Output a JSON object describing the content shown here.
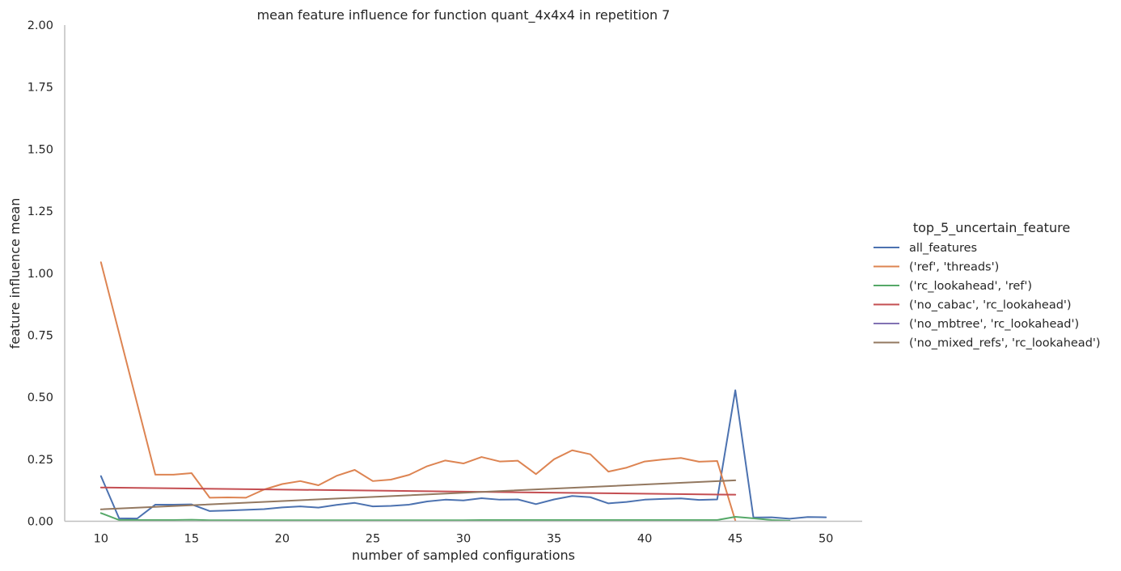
{
  "chart_data": {
    "type": "line",
    "title": "mean feature influence for function quant_4x4x4 in repetition 7",
    "xlabel": "number of sampled configurations",
    "ylabel": "feature influence mean",
    "xlim": [
      8,
      52
    ],
    "ylim": [
      0,
      2
    ],
    "xticks": [
      10,
      15,
      20,
      25,
      30,
      35,
      40,
      45,
      50
    ],
    "yticks": [
      0,
      0.25,
      0.5,
      0.75,
      1,
      1.25,
      1.5,
      1.75,
      2
    ],
    "ytick_labels": [
      "0.00",
      "0.25",
      "0.50",
      "0.75",
      "1.00",
      "1.25",
      "1.50",
      "1.75",
      "2.00"
    ],
    "grid": false,
    "legend": {
      "title": "top_5_uncertain_feature",
      "placement": "right"
    },
    "series": [
      {
        "name": "all_features",
        "color": "#4c72b0",
        "x": [
          10,
          11,
          12,
          13,
          14,
          15,
          16,
          17,
          18,
          19,
          20,
          21,
          22,
          23,
          24,
          25,
          26,
          27,
          28,
          29,
          30,
          31,
          32,
          33,
          34,
          35,
          36,
          37,
          38,
          39,
          40,
          41,
          42,
          43,
          44,
          45,
          46,
          47,
          48,
          49,
          50
        ],
        "y": [
          0.182,
          0.012,
          0.011,
          0.067,
          0.067,
          0.068,
          0.041,
          0.043,
          0.046,
          0.049,
          0.056,
          0.06,
          0.055,
          0.066,
          0.074,
          0.06,
          0.062,
          0.067,
          0.08,
          0.087,
          0.084,
          0.093,
          0.087,
          0.088,
          0.069,
          0.088,
          0.102,
          0.097,
          0.072,
          0.078,
          0.087,
          0.09,
          0.092,
          0.086,
          0.088,
          0.528,
          0.015,
          0.016,
          0.01,
          0.017,
          0.016
        ]
      },
      {
        "name": "('ref', 'threads')",
        "color": "#dd8452",
        "x": [
          10,
          13,
          14,
          15,
          16,
          17,
          18,
          19,
          20,
          21,
          22,
          23,
          24,
          25,
          26,
          27,
          28,
          29,
          30,
          31,
          32,
          33,
          34,
          35,
          36,
          37,
          38,
          39,
          40,
          41,
          42,
          43,
          44,
          45
        ],
        "y": [
          1.044,
          0.188,
          0.188,
          0.194,
          0.095,
          0.096,
          0.095,
          0.128,
          0.15,
          0.162,
          0.145,
          0.183,
          0.207,
          0.162,
          0.168,
          0.187,
          0.222,
          0.245,
          0.233,
          0.259,
          0.241,
          0.244,
          0.19,
          0.25,
          0.286,
          0.27,
          0.2,
          0.216,
          0.241,
          0.249,
          0.255,
          0.24,
          0.243,
          0.003
        ]
      },
      {
        "name": "('rc_lookahead', 'ref')",
        "color": "#55a868",
        "x": [
          10,
          11,
          12,
          13,
          14,
          15,
          16,
          17,
          18,
          19,
          20,
          21,
          22,
          23,
          24,
          25,
          26,
          27,
          28,
          29,
          30,
          31,
          32,
          33,
          34,
          35,
          36,
          37,
          38,
          39,
          40,
          41,
          42,
          43,
          44,
          45,
          46,
          47,
          48
        ],
        "y": [
          0.033,
          0.005,
          0.005,
          0.005,
          0.005,
          0.006,
          0.004,
          0.004,
          0.004,
          0.004,
          0.004,
          0.004,
          0.004,
          0.004,
          0.004,
          0.004,
          0.004,
          0.004,
          0.004,
          0.004,
          0.004,
          0.005,
          0.005,
          0.005,
          0.005,
          0.005,
          0.005,
          0.005,
          0.005,
          0.005,
          0.005,
          0.005,
          0.005,
          0.005,
          0.005,
          0.018,
          0.012,
          0.005,
          0.002
        ]
      },
      {
        "name": "('no_cabac', 'rc_lookahead')",
        "color": "#c44e52",
        "x": [
          10,
          45
        ],
        "y": [
          0.136,
          0.107
        ]
      },
      {
        "name": "('no_mbtree', 'rc_lookahead')",
        "color": "#8172b3",
        "x": [],
        "y": []
      },
      {
        "name": "('no_mixed_refs', 'rc_lookahead')",
        "color": "#937860",
        "x": [
          10,
          45
        ],
        "y": [
          0.048,
          0.165
        ]
      }
    ]
  }
}
